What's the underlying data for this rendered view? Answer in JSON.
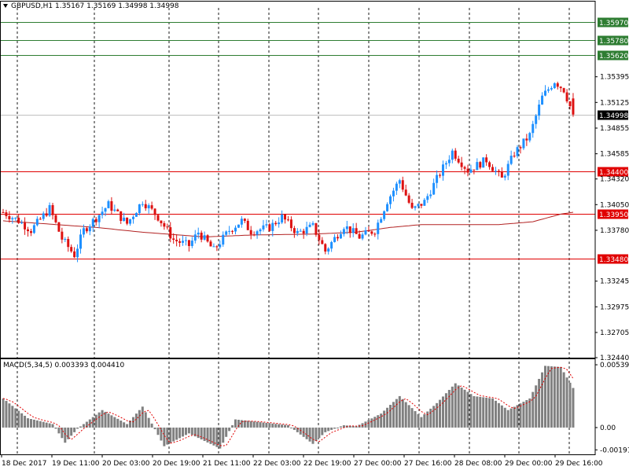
{
  "window": {
    "symbol_timeframe": "GBPUSD,H1",
    "ohlc": "1.35167 1.35169 1.34998 1.34998"
  },
  "macd": {
    "label": "MACD(5,34,5) 0.003393 0.004410"
  },
  "colors": {
    "bull": "#1e90ff",
    "bear": "#dd1111",
    "ma": "#b22222",
    "grid": "#000000",
    "green_level": "#2e7d32",
    "red_level": "#e00000",
    "histogram": "#808080",
    "signal": "#e00000"
  },
  "price_axis": {
    "ticks": [
      "1.35395",
      "1.35125",
      "1.34855",
      "1.34585",
      "1.34320",
      "1.34050",
      "1.33780",
      "1.33245",
      "1.32975",
      "1.32705",
      "1.32440"
    ],
    "current_price": "1.34998"
  },
  "horizontal_levels": [
    {
      "price": 1.3597,
      "label": "1.35970",
      "color": "green"
    },
    {
      "price": 1.3578,
      "label": "1.35780",
      "color": "green"
    },
    {
      "price": 1.3562,
      "label": "1.35620",
      "color": "green"
    },
    {
      "price": 1.344,
      "label": "1.34400",
      "color": "red"
    },
    {
      "price": 1.3395,
      "label": "1.33950",
      "color": "red"
    },
    {
      "price": 1.3348,
      "label": "1.33480",
      "color": "red"
    }
  ],
  "macd_axis": {
    "ticks": [
      "0.005393",
      "0.00",
      "-0.001914"
    ]
  },
  "time_axis": {
    "labels": [
      "18 Dec 2017",
      "19 Dec 11:00",
      "20 Dec 03:00",
      "20 Dec 19:00",
      "21 Dec 11:00",
      "22 Dec 03:00",
      "22 Dec 19:00",
      "27 Dec 00:00",
      "27 Dec 16:00",
      "28 Dec 08:00",
      "29 Dec 00:00",
      "29 Dec 16:00"
    ]
  },
  "chart_data": {
    "type": "candlestick",
    "price_range": [
      1.3244,
      1.3612
    ],
    "macd_range": [
      -0.0023,
      0.0058
    ],
    "moving_average_waypoints": [
      [
        0,
        1.3388
      ],
      [
        30,
        1.3381
      ],
      [
        45,
        1.3376
      ],
      [
        65,
        1.3371
      ],
      [
        80,
        1.3373
      ],
      [
        100,
        1.3374
      ],
      [
        114,
        1.3376
      ],
      [
        125,
        1.3381
      ],
      [
        135,
        1.3384
      ],
      [
        160,
        1.3384
      ],
      [
        171,
        1.3387
      ],
      [
        180,
        1.3395
      ],
      [
        184,
        1.3397
      ]
    ],
    "macd_histogram_waypoints": [
      [
        0,
        0.0025
      ],
      [
        8,
        0.0008
      ],
      [
        16,
        0.0003
      ],
      [
        20,
        -0.0013
      ],
      [
        24,
        -0.0001
      ],
      [
        32,
        0.0015
      ],
      [
        40,
        0.0003
      ],
      [
        45,
        0.0018
      ],
      [
        52,
        -0.0016
      ],
      [
        60,
        -0.0005
      ],
      [
        70,
        -0.0018
      ],
      [
        75,
        0.0007
      ],
      [
        85,
        0.0004
      ],
      [
        92,
        0.0002
      ],
      [
        100,
        -0.0014
      ],
      [
        104,
        -0.0004
      ],
      [
        110,
        0.0002
      ],
      [
        114,
        0.0001
      ],
      [
        122,
        0.0012
      ],
      [
        128,
        0.0027
      ],
      [
        135,
        0.0009
      ],
      [
        140,
        0.0021
      ],
      [
        146,
        0.0038
      ],
      [
        152,
        0.0027
      ],
      [
        158,
        0.0025
      ],
      [
        163,
        0.0015
      ],
      [
        170,
        0.0025
      ],
      [
        175,
        0.0053
      ],
      [
        180,
        0.0052
      ],
      [
        184,
        0.0034
      ]
    ],
    "candle_count": 185,
    "candle_waypoints": [
      [
        0,
        1.3397
      ],
      [
        5,
        1.3388
      ],
      [
        9,
        1.3378
      ],
      [
        15,
        1.3401
      ],
      [
        19,
        1.3369
      ],
      [
        23,
        1.3352
      ],
      [
        26,
        1.3378
      ],
      [
        30,
        1.3391
      ],
      [
        34,
        1.3405
      ],
      [
        40,
        1.3385
      ],
      [
        45,
        1.3409
      ],
      [
        50,
        1.3392
      ],
      [
        55,
        1.3368
      ],
      [
        60,
        1.3362
      ],
      [
        63,
        1.3376
      ],
      [
        68,
        1.3357
      ],
      [
        73,
        1.3378
      ],
      [
        77,
        1.3388
      ],
      [
        80,
        1.3377
      ],
      [
        86,
        1.3381
      ],
      [
        90,
        1.3392
      ],
      [
        95,
        1.3375
      ],
      [
        100,
        1.3382
      ],
      [
        104,
        1.3356
      ],
      [
        110,
        1.3383
      ],
      [
        115,
        1.3371
      ],
      [
        120,
        1.3378
      ],
      [
        124,
        1.3409
      ],
      [
        128,
        1.3431
      ],
      [
        132,
        1.3399
      ],
      [
        136,
        1.3408
      ],
      [
        140,
        1.3432
      ],
      [
        145,
        1.3461
      ],
      [
        150,
        1.3441
      ],
      [
        156,
        1.3452
      ],
      [
        161,
        1.3432
      ],
      [
        165,
        1.3459
      ],
      [
        170,
        1.3478
      ],
      [
        174,
        1.3518
      ],
      [
        178,
        1.3535
      ],
      [
        181,
        1.3526
      ],
      [
        184,
        1.34998
      ]
    ]
  }
}
